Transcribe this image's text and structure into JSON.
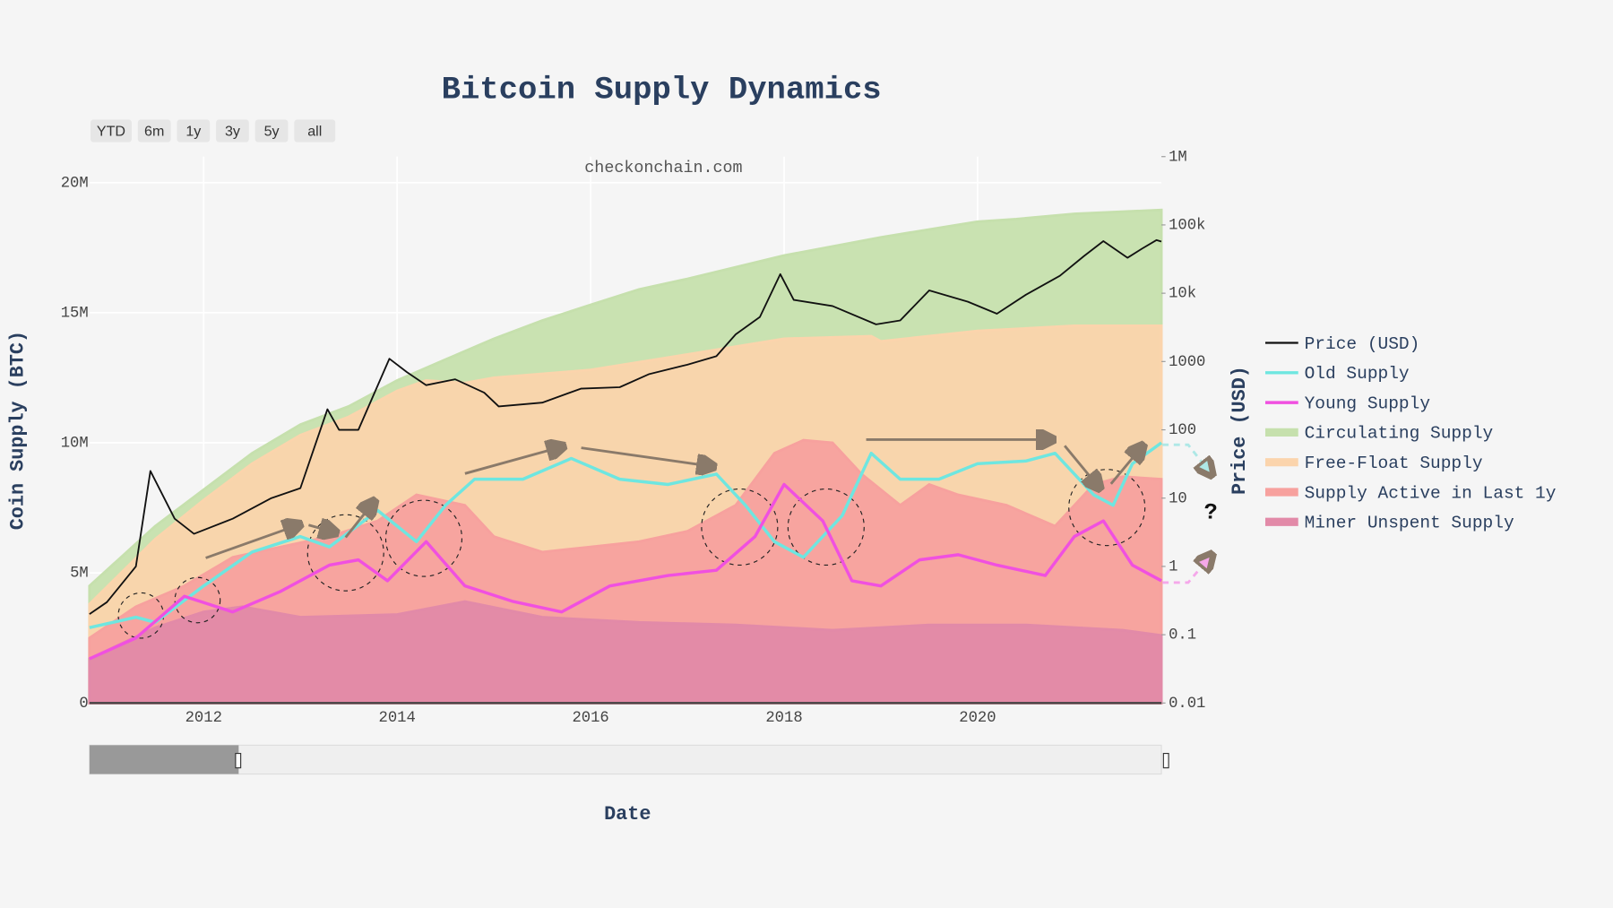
{
  "chart_data": {
    "type": "area-line",
    "title": "Bitcoin Supply Dynamics",
    "xlabel": "Date",
    "ylabel": "Coin Supply (BTC)",
    "y2label": "Price (USD)",
    "annotations": [
      "checkonchain.com",
      "?"
    ],
    "range_buttons": [
      "YTD",
      "6m",
      "1y",
      "3y",
      "5y",
      "all"
    ],
    "legend": "right",
    "grid": true,
    "y2log": true,
    "xlim": [
      2010.82,
      2021.9
    ],
    "xticks": [
      2012,
      2014,
      2016,
      2018,
      2020
    ],
    "ylim": [
      0,
      21000000
    ],
    "yticks": [
      0,
      {
        "value": 5000000,
        "label": "5M"
      },
      {
        "value": 10000000,
        "label": "10M"
      },
      {
        "value": 15000000,
        "label": "15M"
      },
      {
        "value": 20000000,
        "label": "20M"
      }
    ],
    "y2lim": [
      0.01,
      1000000
    ],
    "y2ticks": [
      0.01,
      0.1,
      1,
      10,
      100,
      1000,
      {
        "value": 10000,
        "label": "10k"
      },
      {
        "value": 100000,
        "label": "100k"
      },
      {
        "value": 1000000,
        "label": "1M"
      }
    ],
    "series": [
      {
        "name": "Price (USD)",
        "mode": "line",
        "axis": "y2",
        "color": "#111111",
        "x": [
          2010.82,
          2011.0,
          2011.3,
          2011.45,
          2011.7,
          2011.9,
          2012.3,
          2012.7,
          2013.0,
          2013.28,
          2013.4,
          2013.6,
          2013.92,
          2014.1,
          2014.3,
          2014.6,
          2014.9,
          2015.05,
          2015.5,
          2015.9,
          2016.3,
          2016.6,
          2017.0,
          2017.3,
          2017.5,
          2017.75,
          2017.96,
          2018.1,
          2018.5,
          2018.95,
          2019.2,
          2019.5,
          2019.9,
          2020.2,
          2020.5,
          2020.85,
          2021.1,
          2021.3,
          2021.55,
          2021.7,
          2021.85,
          2021.9
        ],
        "values": [
          0.2,
          0.3,
          1,
          25,
          5,
          3,
          5,
          10,
          14,
          200,
          100,
          100,
          1100,
          700,
          450,
          550,
          350,
          220,
          250,
          400,
          420,
          650,
          900,
          1200,
          2500,
          4500,
          19000,
          8000,
          6500,
          3500,
          4000,
          11000,
          7500,
          5000,
          9500,
          18000,
          35000,
          58000,
          33000,
          45000,
          60000,
          57000
        ]
      },
      {
        "name": "Old Supply",
        "mode": "line",
        "color": "#6ee6e0",
        "x": [
          2010.82,
          2011.3,
          2011.5,
          2012,
          2012.5,
          2013,
          2013.3,
          2013.8,
          2014.2,
          2014.5,
          2014.8,
          2015.3,
          2015.8,
          2016.3,
          2016.8,
          2017.3,
          2017.6,
          2017.9,
          2018.2,
          2018.6,
          2018.9,
          2019.2,
          2019.6,
          2020,
          2020.5,
          2020.8,
          2021.2,
          2021.4,
          2021.6,
          2021.9
        ],
        "values": [
          2900000,
          3300000,
          3100000,
          4500000,
          5800000,
          6400000,
          6000000,
          7400000,
          6200000,
          7600000,
          8600000,
          8600000,
          9400000,
          8600000,
          8400000,
          8800000,
          7600000,
          6200000,
          5600000,
          7200000,
          9600000,
          8600000,
          8600000,
          9200000,
          9300000,
          9600000,
          8000000,
          7600000,
          9200000,
          10000000
        ]
      },
      {
        "name": "Young Supply",
        "mode": "line",
        "color": "#f050e0",
        "x": [
          2010.82,
          2011.3,
          2011.8,
          2012.3,
          2012.8,
          2013.3,
          2013.6,
          2013.9,
          2014.3,
          2014.7,
          2015.2,
          2015.7,
          2016.2,
          2016.8,
          2017.3,
          2017.7,
          2018,
          2018.4,
          2018.7,
          2019,
          2019.4,
          2019.8,
          2020.2,
          2020.7,
          2021,
          2021.3,
          2021.6,
          2021.9
        ],
        "values": [
          1700000,
          2500000,
          4100000,
          3500000,
          4300000,
          5300000,
          5500000,
          4700000,
          6200000,
          4500000,
          3900000,
          3500000,
          4500000,
          4900000,
          5100000,
          6400000,
          8400000,
          7000000,
          4700000,
          4500000,
          5500000,
          5700000,
          5300000,
          4900000,
          6400000,
          7000000,
          5300000,
          4700000
        ]
      },
      {
        "name": "Circulating Supply",
        "mode": "area",
        "color": "#c6e0ad",
        "x": [
          2010.82,
          2011.5,
          2012,
          2012.5,
          2013,
          2013.5,
          2014,
          2014.5,
          2015,
          2015.5,
          2016,
          2016.5,
          2017,
          2018,
          2019,
          2020,
          2020.4,
          2021,
          2021.9
        ],
        "values": [
          4500000,
          6800000,
          8200000,
          9600000,
          10700000,
          11400000,
          12400000,
          13200000,
          14000000,
          14700000,
          15300000,
          15900000,
          16300000,
          17200000,
          17900000,
          18500000,
          18600000,
          18800000,
          18950000
        ]
      },
      {
        "name": "Free-Float Supply",
        "mode": "area",
        "color": "#fbd4ac",
        "x": [
          2010.82,
          2011.5,
          2012,
          2012.5,
          2013,
          2013.5,
          2014,
          2014.3,
          2014.7,
          2015,
          2016,
          2017,
          2018,
          2018.9,
          2019,
          2020,
          2021,
          2021.9
        ],
        "values": [
          3800000,
          6300000,
          7800000,
          9200000,
          10300000,
          11000000,
          12000000,
          12400000,
          12300000,
          12500000,
          12800000,
          13400000,
          14000000,
          14100000,
          13900000,
          14300000,
          14500000,
          14500000
        ]
      },
      {
        "name": "Supply Active in Last 1y",
        "mode": "area",
        "color": "#f7a19e",
        "x": [
          2010.82,
          2011.3,
          2011.8,
          2012.3,
          2012.8,
          2013.3,
          2013.8,
          2014.2,
          2014.7,
          2015,
          2015.5,
          2016,
          2016.5,
          2017,
          2017.5,
          2017.9,
          2018.2,
          2018.5,
          2018.8,
          2019.2,
          2019.5,
          2019.8,
          2020.3,
          2020.8,
          2021.2,
          2021.5,
          2021.9
        ],
        "values": [
          2500000,
          3700000,
          4500000,
          5600000,
          6000000,
          6400000,
          7000000,
          8000000,
          7600000,
          6400000,
          5800000,
          6000000,
          6200000,
          6600000,
          7600000,
          9600000,
          10100000,
          10000000,
          8800000,
          7600000,
          8400000,
          8000000,
          7600000,
          6800000,
          8400000,
          8700000,
          8600000
        ]
      },
      {
        "name": "Miner Unspent Supply",
        "mode": "area",
        "color": "#e28aa8",
        "x": [
          2010.82,
          2011.5,
          2012,
          2012.4,
          2013,
          2014,
          2014.7,
          2015.5,
          2016.5,
          2017.5,
          2018.5,
          2019.5,
          2020.5,
          2021.5,
          2021.9
        ],
        "values": [
          1700000,
          2900000,
          3500000,
          3700000,
          3300000,
          3400000,
          3900000,
          3300000,
          3100000,
          3000000,
          2800000,
          3000000,
          3000000,
          2800000,
          2600000
        ]
      }
    ]
  }
}
